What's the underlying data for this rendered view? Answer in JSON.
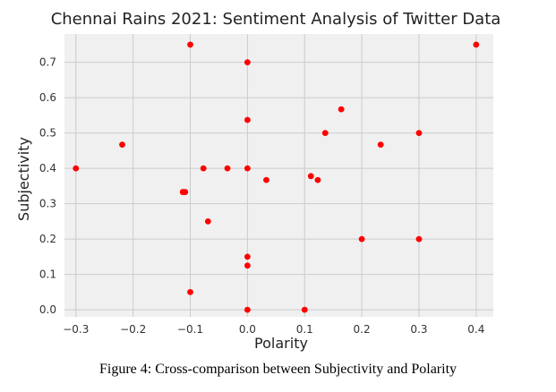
{
  "chart_data": {
    "type": "scatter",
    "title": "Chennai Rains 2021: Sentiment Analysis of Twitter Data",
    "xlabel": "Polarity",
    "ylabel": "Subjectivity",
    "xlim": [
      -0.32,
      0.43
    ],
    "ylim": [
      -0.02,
      0.78
    ],
    "x_ticks": [
      -0.3,
      -0.2,
      -0.1,
      0.0,
      0.1,
      0.2,
      0.3,
      0.4
    ],
    "x_tick_labels": [
      "−0.3",
      "−0.2",
      "−0.1",
      "0.0",
      "0.1",
      "0.2",
      "0.3",
      "0.4"
    ],
    "y_ticks": [
      0.0,
      0.1,
      0.2,
      0.3,
      0.4,
      0.5,
      0.6,
      0.7
    ],
    "y_tick_labels": [
      "0.0",
      "0.1",
      "0.2",
      "0.3",
      "0.4",
      "0.5",
      "0.6",
      "0.7"
    ],
    "grid": true,
    "marker_color": "#ff0000",
    "points": [
      {
        "x": -0.3,
        "y": 0.4
      },
      {
        "x": -0.219,
        "y": 0.467
      },
      {
        "x": -0.113,
        "y": 0.333
      },
      {
        "x": -0.109,
        "y": 0.333
      },
      {
        "x": -0.1,
        "y": 0.75
      },
      {
        "x": -0.1,
        "y": 0.05
      },
      {
        "x": -0.077,
        "y": 0.4
      },
      {
        "x": -0.069,
        "y": 0.25
      },
      {
        "x": -0.035,
        "y": 0.4
      },
      {
        "x": 0.0,
        "y": 0.7
      },
      {
        "x": 0.0,
        "y": 0.537
      },
      {
        "x": 0.0,
        "y": 0.4
      },
      {
        "x": 0.0,
        "y": 0.15
      },
      {
        "x": 0.0,
        "y": 0.125
      },
      {
        "x": 0.0,
        "y": 0.0
      },
      {
        "x": 0.033,
        "y": 0.367
      },
      {
        "x": 0.1,
        "y": 0.0
      },
      {
        "x": 0.111,
        "y": 0.378
      },
      {
        "x": 0.123,
        "y": 0.367
      },
      {
        "x": 0.136,
        "y": 0.5
      },
      {
        "x": 0.164,
        "y": 0.567
      },
      {
        "x": 0.2,
        "y": 0.2
      },
      {
        "x": 0.233,
        "y": 0.467
      },
      {
        "x": 0.3,
        "y": 0.5
      },
      {
        "x": 0.3,
        "y": 0.2
      },
      {
        "x": 0.4,
        "y": 0.75
      }
    ]
  },
  "figure": {
    "caption": "Figure 4: Cross-comparison between Subjectivity and Polarity"
  }
}
